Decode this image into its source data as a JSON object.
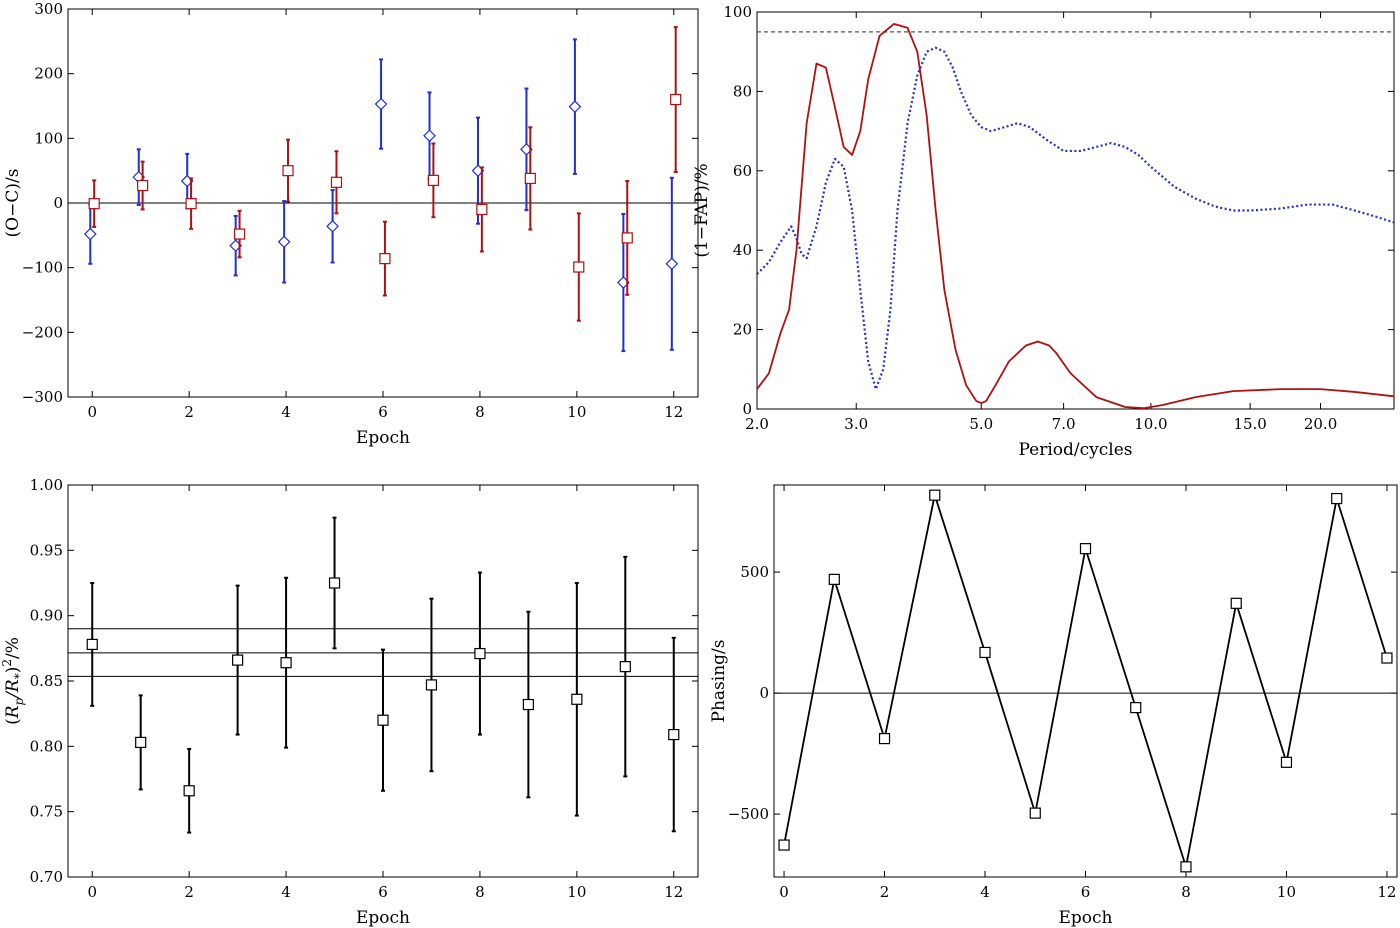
{
  "chart_data": [
    {
      "id": "oc",
      "type": "scatter",
      "xlabel": "Epoch",
      "ylabel": "(O−C)/s",
      "xlim": [
        -0.5,
        12.5
      ],
      "ylim": [
        -300,
        300
      ],
      "xticks": [
        0,
        2,
        4,
        6,
        8,
        10,
        12
      ],
      "xtick_labels": [
        "0",
        "2",
        "4",
        "6",
        "8",
        "10",
        "12"
      ],
      "yticks": [
        -300,
        -200,
        -100,
        0,
        100,
        200,
        300
      ],
      "ytick_labels": [
        "−300",
        "−200",
        "−100",
        "0",
        "100",
        "200",
        "300"
      ],
      "hlines": [
        0
      ],
      "series": [
        {
          "name": "blue-diamonds",
          "marker": "diamond",
          "color": "#1f2fd6",
          "offset": -0.04,
          "x": [
            0,
            1,
            2,
            3,
            4,
            5,
            6,
            7,
            8,
            9,
            10,
            11,
            12
          ],
          "y": [
            -48,
            40,
            34,
            -66,
            -60,
            -36,
            153,
            104,
            50,
            83,
            149,
            -123,
            -94
          ],
          "err": [
            46,
            43,
            42,
            46,
            63,
            56,
            69,
            67,
            82,
            94,
            104,
            106,
            133
          ]
        },
        {
          "name": "red-squares",
          "marker": "square",
          "color": "#b01010",
          "offset": 0.04,
          "x": [
            0,
            1,
            2,
            3,
            4,
            5,
            6,
            7,
            8,
            9,
            10,
            11,
            12
          ],
          "y": [
            -1,
            27,
            -1,
            -48,
            50,
            32,
            -86,
            35,
            -10,
            38,
            -99,
            -54,
            160
          ],
          "err": [
            36,
            37,
            39,
            36,
            48,
            48,
            57,
            57,
            65,
            79,
            83,
            88,
            112
          ]
        }
      ]
    },
    {
      "id": "fap",
      "type": "line",
      "xlabel": "Period/cycles",
      "ylabel": "(1−FAP)/%",
      "xscale": "log",
      "xlim": [
        2.0,
        27.0
      ],
      "ylim": [
        0,
        100
      ],
      "xticks": [
        2.0,
        3.0,
        5.0,
        7.0,
        10.0,
        15.0,
        20.0
      ],
      "xtick_labels": [
        "2.0",
        "3.0",
        "5.0",
        "7.0",
        "10.0",
        "15.0",
        "20.0"
      ],
      "yticks": [
        0,
        20,
        40,
        60,
        80,
        100
      ],
      "ytick_labels": [
        "0",
        "20",
        "40",
        "60",
        "80",
        "100"
      ],
      "threshold": 95,
      "series": [
        {
          "name": "red-solid",
          "style": "solid",
          "color": "#b01010",
          "x": [
            2.0,
            2.1,
            2.2,
            2.28,
            2.35,
            2.45,
            2.55,
            2.65,
            2.75,
            2.85,
            2.95,
            3.05,
            3.15,
            3.3,
            3.5,
            3.7,
            3.85,
            4.0,
            4.15,
            4.3,
            4.5,
            4.7,
            4.9,
            5.0,
            5.1,
            5.3,
            5.6,
            6.0,
            6.3,
            6.6,
            6.8,
            7.2,
            8.0,
            9.0,
            9.7,
            10.5,
            12.0,
            14.0,
            17.0,
            20.0,
            23.0,
            27.0
          ],
          "y": [
            5,
            9,
            19,
            25,
            40,
            72,
            87,
            86,
            76,
            66,
            64,
            70,
            83,
            94,
            97,
            96,
            90,
            74,
            50,
            30,
            15,
            6,
            2,
            1.5,
            2,
            6,
            12,
            16,
            17,
            16,
            14,
            9,
            3,
            0.5,
            0.2,
            1,
            3,
            4.5,
            5,
            5,
            4.3,
            3.2
          ]
        },
        {
          "name": "blue-dotted",
          "style": "dotted",
          "color": "#1f2fd6",
          "x": [
            2.0,
            2.1,
            2.2,
            2.3,
            2.35,
            2.4,
            2.45,
            2.55,
            2.65,
            2.75,
            2.85,
            2.95,
            3.05,
            3.15,
            3.25,
            3.35,
            3.45,
            3.55,
            3.7,
            3.85,
            4.0,
            4.15,
            4.3,
            4.45,
            4.6,
            4.8,
            5.0,
            5.2,
            5.5,
            5.8,
            6.1,
            6.5,
            7.0,
            7.5,
            8.0,
            8.5,
            9.0,
            9.5,
            10.0,
            11.0,
            12.0,
            13.0,
            14.0,
            15.0,
            17.0,
            19.0,
            21.0,
            23.0,
            25.0,
            27.0
          ],
          "y": [
            34,
            37,
            42,
            46,
            43,
            39,
            38,
            46,
            57,
            63,
            61,
            50,
            30,
            12,
            5,
            10,
            25,
            50,
            72,
            84,
            90,
            91,
            90,
            86,
            80,
            74,
            71,
            70,
            71,
            72,
            71,
            68,
            65,
            65,
            66,
            67,
            66,
            64,
            61,
            56,
            53,
            51,
            50,
            50,
            50.5,
            51.5,
            51.5,
            50,
            48.5,
            47
          ]
        }
      ]
    },
    {
      "id": "depth",
      "type": "scatter",
      "xlabel": "Epoch",
      "ylabel": "(R_p/R_*)²/%",
      "xlim": [
        -0.5,
        12.5
      ],
      "ylim": [
        0.7,
        1.0
      ],
      "xticks": [
        0,
        2,
        4,
        6,
        8,
        10,
        12
      ],
      "xtick_labels": [
        "0",
        "2",
        "4",
        "6",
        "8",
        "10",
        "12"
      ],
      "yticks": [
        0.7,
        0.75,
        0.8,
        0.85,
        0.9,
        0.95,
        1.0
      ],
      "ytick_labels": [
        "0.70",
        "0.75",
        "0.80",
        "0.85",
        "0.90",
        "0.95",
        "1.00"
      ],
      "hlines": [
        0.89,
        0.8715,
        0.8535
      ],
      "series": [
        {
          "name": "black-squares",
          "marker": "square",
          "color": "#000000",
          "x": [
            0,
            1,
            2,
            3,
            4,
            5,
            6,
            7,
            8,
            9,
            10,
            11,
            12
          ],
          "y": [
            0.878,
            0.803,
            0.766,
            0.866,
            0.864,
            0.925,
            0.82,
            0.847,
            0.871,
            0.832,
            0.836,
            0.861,
            0.809
          ],
          "err": [
            0.047,
            0.036,
            0.032,
            0.057,
            0.065,
            0.05,
            0.054,
            0.066,
            0.062,
            0.071,
            0.089,
            0.084,
            0.074
          ]
        }
      ]
    },
    {
      "id": "phasing",
      "type": "line",
      "xlabel": "Epoch",
      "ylabel": "Phasing/s",
      "xlim": [
        -0.2,
        12.2
      ],
      "ylim": [
        -760,
        860
      ],
      "xticks": [
        0,
        2,
        4,
        6,
        8,
        10,
        12
      ],
      "xtick_labels": [
        "0",
        "2",
        "4",
        "6",
        "8",
        "10",
        "12"
      ],
      "yticks": [
        -500,
        0,
        500
      ],
      "ytick_labels": [
        "−500",
        "0",
        "500"
      ],
      "hlines": [
        0
      ],
      "series": [
        {
          "name": "black-line-squares",
          "marker": "square",
          "color": "#000000",
          "x": [
            0,
            1,
            2,
            3,
            4,
            5,
            6,
            7,
            8,
            9,
            10,
            11,
            12
          ],
          "y": [
            -628,
            470,
            -188,
            818,
            168,
            -496,
            597,
            -60,
            -718,
            371,
            -286,
            804,
            145
          ]
        }
      ]
    }
  ]
}
